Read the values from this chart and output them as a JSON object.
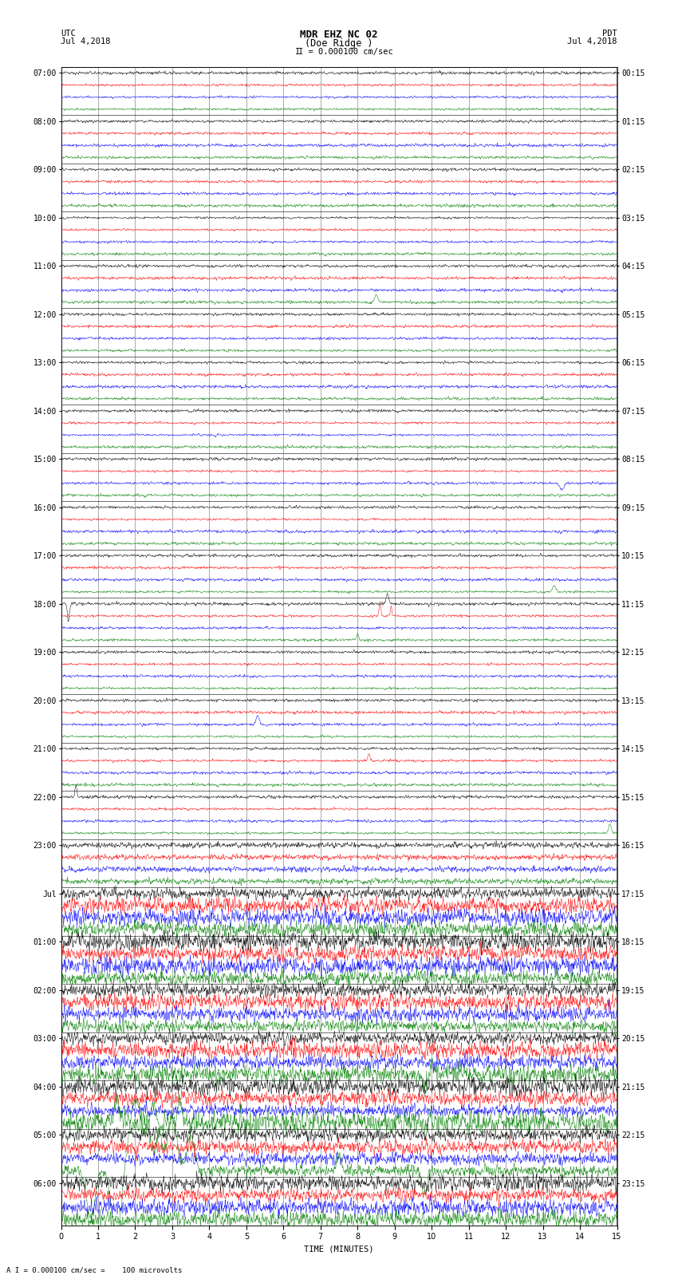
{
  "title_line1": "MDR EHZ NC 02",
  "title_line2": "(Doe Ridge )",
  "scale_label": "I = 0.000100 cm/sec",
  "left_label_top": "UTC",
  "left_label_date": "Jul 4,2018",
  "right_label_top": "PDT",
  "right_label_date": "Jul 4,2018",
  "bottom_label": "TIME (MINUTES)",
  "footnote": "A I = 0.000100 cm/sec =    100 microvolts",
  "xlim": [
    0,
    15
  ],
  "xticks": [
    0,
    1,
    2,
    3,
    4,
    5,
    6,
    7,
    8,
    9,
    10,
    11,
    12,
    13,
    14,
    15
  ],
  "bg_color": "#ffffff",
  "line_colors": [
    "black",
    "red",
    "blue",
    "green"
  ],
  "grid_color": "#888888",
  "title_fontsize": 9,
  "label_fontsize": 7.5,
  "tick_fontsize": 7
}
